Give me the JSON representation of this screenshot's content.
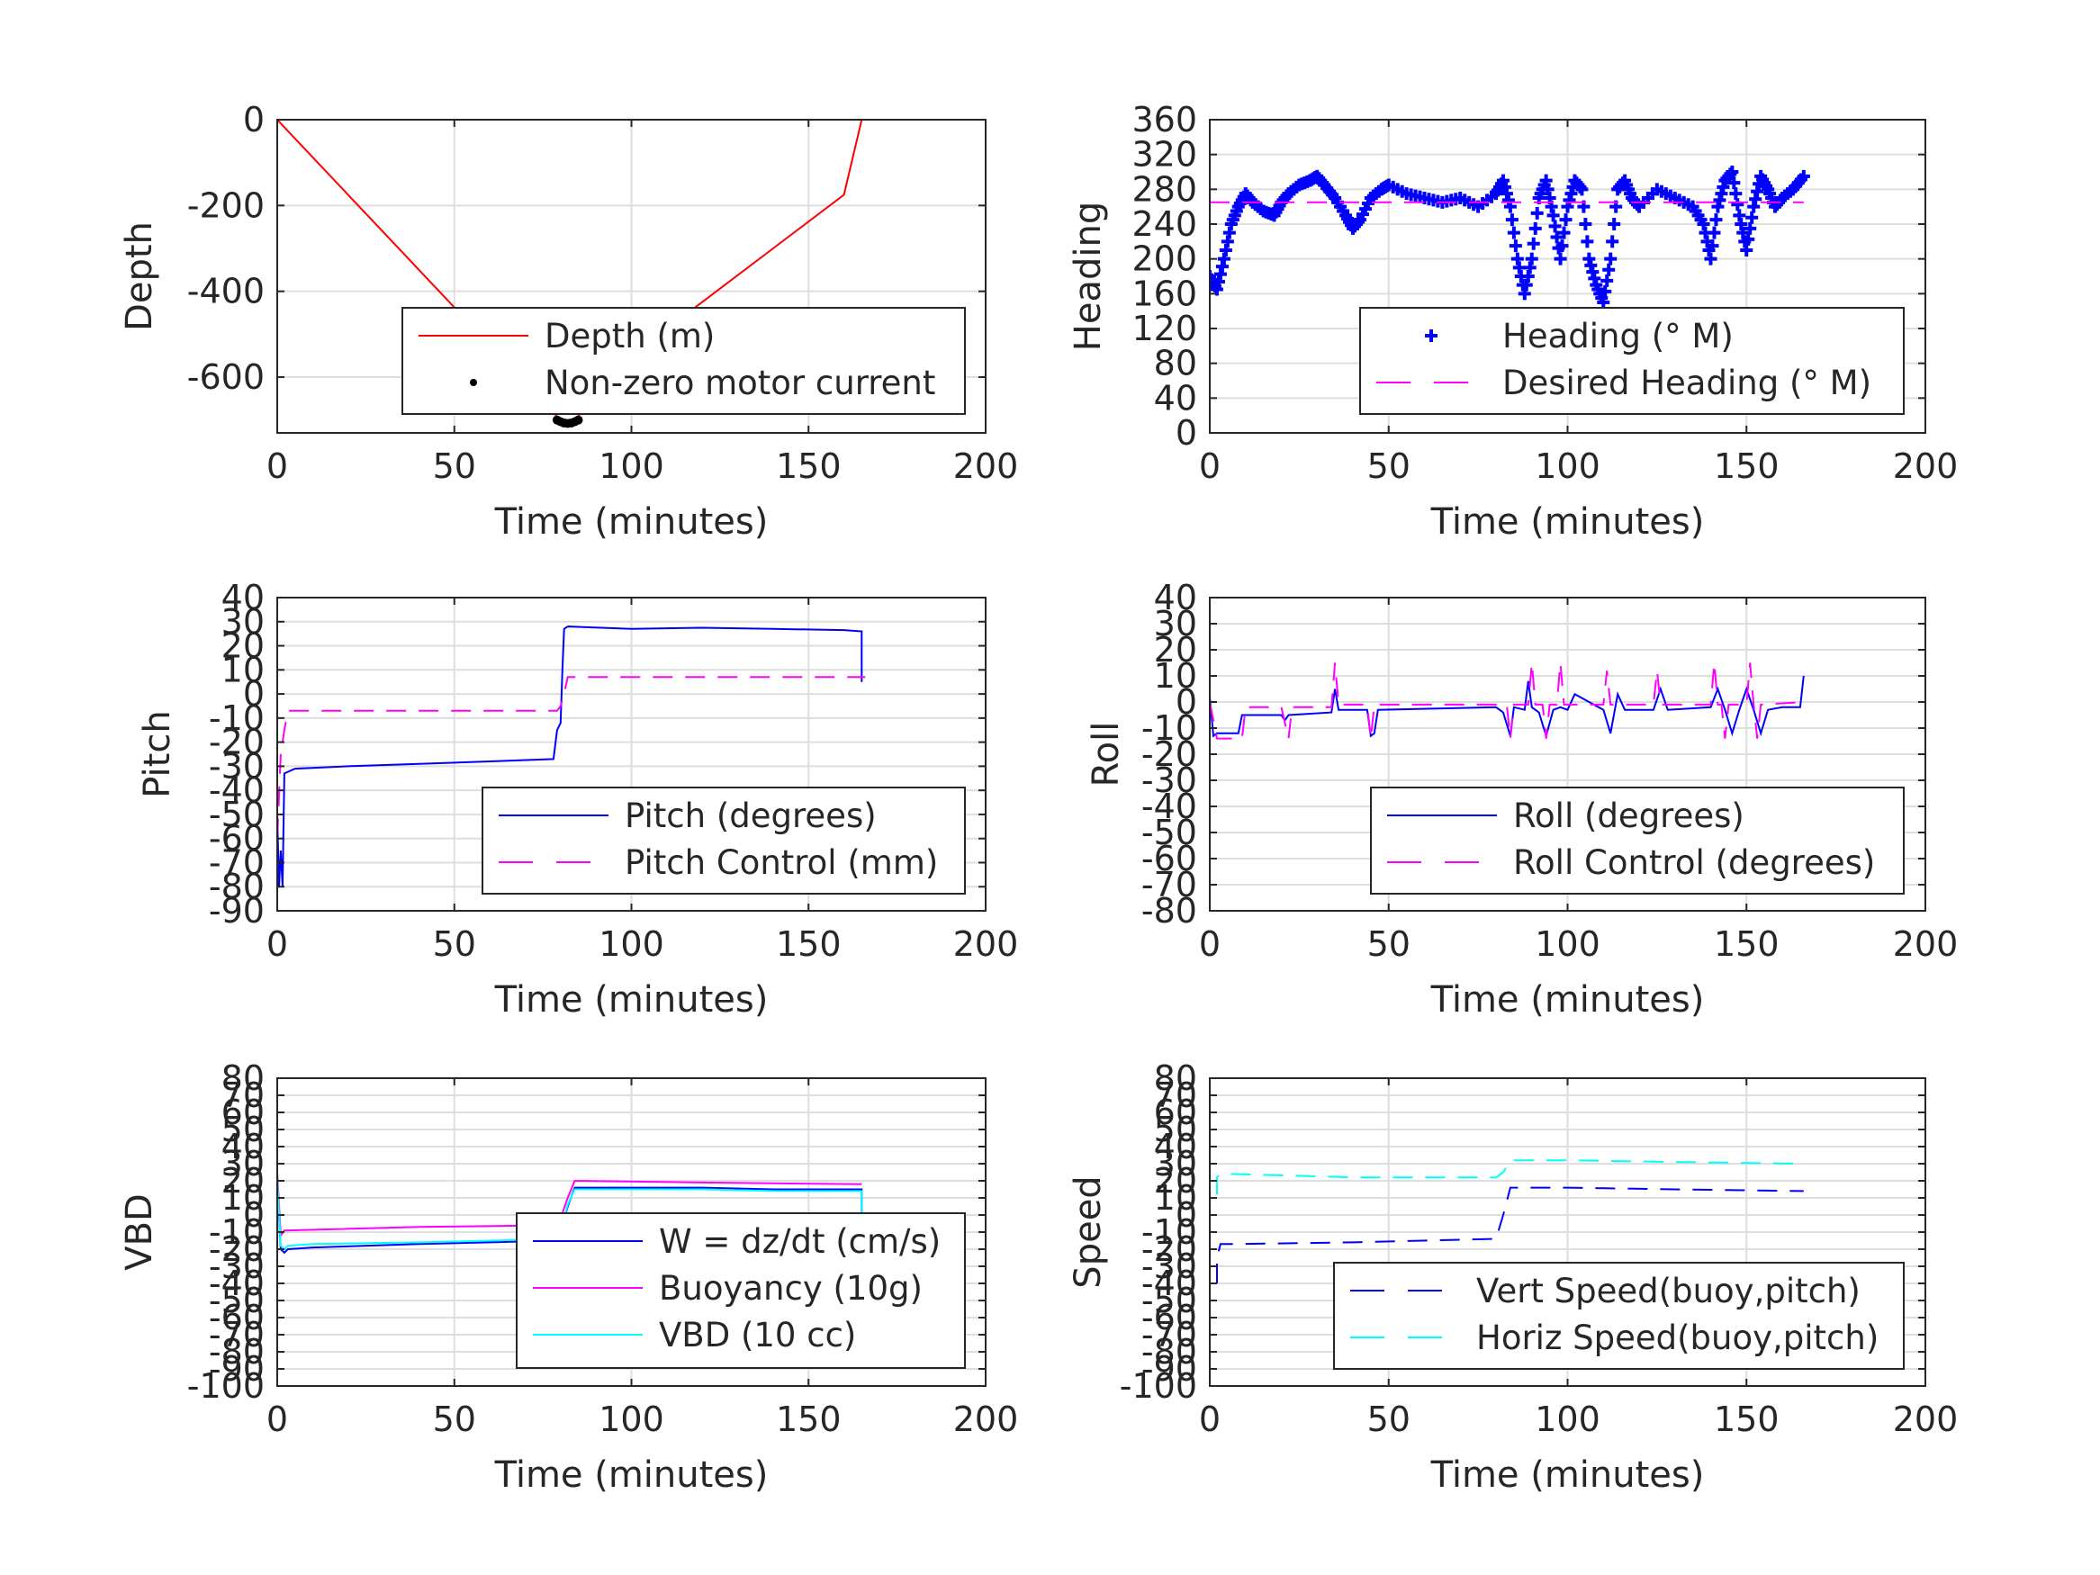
{
  "chart_data": [
    {
      "id": "depth",
      "type": "line",
      "xlabel": "Time (minutes)",
      "ylabel": "Depth",
      "xlim": [
        0,
        200
      ],
      "ylim": [
        -730,
        0
      ],
      "xticks": [
        0,
        50,
        100,
        150,
        200
      ],
      "yticks": [
        0,
        -200,
        -400,
        -600
      ],
      "grid": true,
      "legend": "bottom-right",
      "series": [
        {
          "name": "Depth (m)",
          "style": "solid",
          "color": "#ff0000",
          "x": [
            0,
            20,
            40,
            60,
            80,
            82,
            84,
            100,
            120,
            140,
            160,
            165
          ],
          "y": [
            0,
            -175,
            -350,
            -525,
            -700,
            -705,
            -700,
            -550,
            -425,
            -300,
            -175,
            0
          ]
        },
        {
          "name": "Non-zero motor current",
          "style": "dots",
          "color": "#000000",
          "x": [
            79,
            80,
            81,
            82,
            83,
            84,
            85
          ],
          "y": [
            -700,
            -704,
            -707,
            -708,
            -707,
            -704,
            -700
          ]
        }
      ]
    },
    {
      "id": "heading",
      "type": "scatter",
      "xlabel": "Time (minutes)",
      "ylabel": "Heading",
      "xlim": [
        0,
        200
      ],
      "ylim": [
        0,
        360
      ],
      "xticks": [
        0,
        50,
        100,
        150,
        200
      ],
      "yticks": [
        0,
        40,
        80,
        120,
        160,
        200,
        240,
        280,
        320,
        360
      ],
      "grid": true,
      "legend": "bottom-right",
      "series": [
        {
          "name": "Heading (° M)",
          "style": "plus",
          "color": "#0000ff",
          "x": [
            0,
            2,
            4,
            6,
            8,
            10,
            12,
            15,
            18,
            20,
            22,
            25,
            28,
            30,
            32,
            35,
            38,
            40,
            42,
            45,
            48,
            50,
            55,
            60,
            65,
            70,
            75,
            80,
            82,
            84,
            86,
            88,
            90,
            92,
            94,
            96,
            98,
            100,
            102,
            104,
            106,
            108,
            110,
            112,
            114,
            116,
            118,
            120,
            125,
            130,
            135,
            138,
            140,
            142,
            144,
            146,
            148,
            150,
            152,
            154,
            156,
            158,
            160,
            163,
            166
          ],
          "y": [
            180,
            165,
            200,
            240,
            260,
            275,
            265,
            255,
            250,
            265,
            275,
            285,
            290,
            295,
            285,
            270,
            250,
            235,
            245,
            270,
            280,
            285,
            275,
            270,
            265,
            270,
            260,
            275,
            290,
            260,
            200,
            160,
            200,
            270,
            290,
            250,
            200,
            260,
            290,
            280,
            200,
            170,
            150,
            200,
            280,
            290,
            270,
            260,
            280,
            270,
            260,
            240,
            200,
            260,
            290,
            300,
            250,
            210,
            260,
            295,
            280,
            260,
            270,
            280,
            295
          ]
        },
        {
          "name": "Desired Heading (° M)",
          "style": "dashed",
          "color": "#ff00ff",
          "x": [
            0,
            166
          ],
          "y": [
            265,
            265
          ]
        }
      ]
    },
    {
      "id": "pitch",
      "type": "line",
      "xlabel": "Time (minutes)",
      "ylabel": "Pitch",
      "xlim": [
        0,
        200
      ],
      "ylim": [
        -90,
        40
      ],
      "xticks": [
        0,
        50,
        100,
        150,
        200
      ],
      "yticks": [
        40,
        30,
        20,
        10,
        0,
        -10,
        -20,
        -30,
        -40,
        -50,
        -60,
        -70,
        -80,
        -90
      ],
      "grid": true,
      "legend": "bottom-right",
      "series": [
        {
          "name": "Pitch (degrees)",
          "style": "solid",
          "color": "#0000ff",
          "x": [
            0,
            0.5,
            1,
            1.5,
            2,
            5,
            20,
            40,
            60,
            78,
            79,
            80,
            80.5,
            81,
            82,
            100,
            120,
            140,
            160,
            165,
            165
          ],
          "y": [
            -50,
            -80,
            -65,
            -80,
            -33,
            -31,
            -30,
            -29,
            -28,
            -27,
            -15,
            -12,
            10,
            27,
            28,
            27,
            27.5,
            27,
            26.5,
            26,
            5
          ]
        },
        {
          "name": "Pitch Control (mm)",
          "style": "dashed",
          "color": "#ff00ff",
          "x": [
            0,
            1,
            2,
            3,
            79,
            80,
            81,
            82,
            166
          ],
          "y": [
            -60,
            -25,
            -15,
            -7,
            -7,
            -5,
            0,
            7,
            7
          ]
        }
      ]
    },
    {
      "id": "roll",
      "type": "line",
      "xlabel": "Time (minutes)",
      "ylabel": "Roll",
      "xlim": [
        0,
        200
      ],
      "ylim": [
        -80,
        40
      ],
      "xticks": [
        0,
        50,
        100,
        150,
        200
      ],
      "yticks": [
        40,
        30,
        20,
        10,
        0,
        -10,
        -20,
        -30,
        -40,
        -50,
        -60,
        -70,
        -80
      ],
      "grid": true,
      "legend": "bottom-right",
      "series": [
        {
          "name": "Roll (degrees)",
          "style": "solid",
          "color": "#0000ff",
          "x": [
            0,
            1,
            2,
            8,
            9,
            20,
            21,
            22,
            34,
            35,
            36,
            44,
            45,
            46,
            47,
            80,
            82,
            84,
            85,
            88,
            89,
            90,
            92,
            94,
            96,
            98,
            100,
            102,
            110,
            112,
            114,
            116,
            124,
            126,
            128,
            140,
            142,
            144,
            146,
            148,
            150,
            152,
            154,
            156,
            160,
            165,
            166
          ],
          "y": [
            2,
            -13,
            -12,
            -12,
            -5,
            -5,
            -7,
            -5,
            -4,
            5,
            -3,
            -3,
            -13,
            -12,
            -3,
            -2,
            -4,
            -13,
            -2,
            -3,
            8,
            -2,
            -4,
            -13,
            -3,
            -2,
            -3,
            3,
            -3,
            -12,
            3,
            -3,
            -3,
            5,
            -3,
            -2,
            5,
            -3,
            -12,
            -3,
            5,
            -3,
            -12,
            -3,
            -2,
            -2,
            10
          ]
        },
        {
          "name": "Roll Control (degrees)",
          "style": "dashed",
          "color": "#ff00ff",
          "x": [
            0,
            2,
            9,
            10,
            20,
            22,
            23,
            34,
            35,
            36,
            37,
            44,
            45,
            46,
            47,
            83,
            84,
            85,
            86,
            89,
            90,
            91,
            93,
            94,
            95,
            97,
            98,
            99,
            101,
            110,
            111,
            112,
            113,
            124,
            125,
            126,
            127,
            140,
            141,
            142,
            143,
            144,
            145,
            146,
            150,
            151,
            152,
            153,
            154,
            166
          ],
          "y": [
            0,
            -14,
            -14,
            -2,
            -2,
            -14,
            -2,
            -2,
            15,
            -1,
            -1,
            -1,
            -14,
            -1,
            -1,
            -1,
            -14,
            -1,
            -1,
            -1,
            15,
            -1,
            -1,
            -14,
            -1,
            -1,
            15,
            -1,
            -1,
            -1,
            12,
            -1,
            -1,
            -1,
            12,
            -1,
            -1,
            -1,
            15,
            -1,
            -1,
            -14,
            -1,
            -1,
            -1,
            15,
            -1,
            -14,
            -1,
            0
          ]
        }
      ]
    },
    {
      "id": "vbd",
      "type": "line",
      "xlabel": "Time (minutes)",
      "ylabel": "VBD",
      "xlim": [
        0,
        200
      ],
      "ylim": [
        -100,
        80
      ],
      "xticks": [
        0,
        50,
        100,
        150,
        200
      ],
      "yticks": [
        80,
        70,
        60,
        50,
        40,
        30,
        20,
        10,
        0,
        -10,
        -20,
        -30,
        -40,
        -50,
        -60,
        -70,
        -80,
        -90,
        -100
      ],
      "grid": true,
      "legend": "bottom-right",
      "series": [
        {
          "name": "W = dz/dt (cm/s)",
          "style": "solid",
          "color": "#0000ff",
          "x": [
            0,
            1,
            2,
            3,
            10,
            40,
            60,
            78,
            80,
            82,
            84,
            100,
            120,
            140,
            160,
            165,
            165
          ],
          "y": [
            20,
            -20,
            -22,
            -20,
            -19,
            -17,
            -16,
            -15,
            -10,
            5,
            16,
            16,
            16,
            15,
            15,
            15,
            0
          ]
        },
        {
          "name": "Buoyancy (10g)",
          "style": "solid",
          "color": "#ff00ff",
          "x": [
            0,
            1,
            2,
            3,
            40,
            79,
            80,
            82,
            84,
            120,
            165
          ],
          "y": [
            25,
            -12,
            -9,
            -9,
            -7,
            -6,
            -2,
            10,
            20,
            19,
            18
          ]
        },
        {
          "name": "VBD (10 cc)",
          "style": "solid",
          "color": "#00ffff",
          "x": [
            0,
            1,
            2,
            3,
            10,
            40,
            60,
            78,
            80,
            82,
            84,
            100,
            120,
            140,
            160,
            165,
            165
          ],
          "y": [
            22,
            -18,
            -20,
            -18,
            -17,
            -16,
            -15,
            -14,
            -9,
            6,
            15,
            15,
            15,
            14,
            14,
            14,
            0
          ]
        }
      ]
    },
    {
      "id": "speed",
      "type": "line",
      "xlabel": "Time (minutes)",
      "ylabel": "Speed",
      "xlim": [
        0,
        200
      ],
      "ylim": [
        -100,
        80
      ],
      "xticks": [
        0,
        50,
        100,
        150,
        200
      ],
      "yticks": [
        80,
        70,
        60,
        50,
        40,
        30,
        20,
        10,
        0,
        -10,
        -20,
        -30,
        -40,
        -50,
        -60,
        -70,
        -80,
        -90,
        -100
      ],
      "grid": true,
      "legend": "bottom-right",
      "series": [
        {
          "name": "Vert Speed(buoy,pitch)",
          "style": "dashed",
          "color": "#0000ff",
          "x": [
            2,
            2,
            3,
            6,
            40,
            79,
            80,
            82,
            84,
            100,
            130,
            166
          ],
          "y": [
            -40,
            -25,
            -17,
            -17,
            -16,
            -14,
            -14,
            0,
            16,
            16,
            15,
            14
          ]
        },
        {
          "name": "Horiz Speed(buoy,pitch)",
          "style": "dashed",
          "color": "#00ffff",
          "x": [
            2,
            2,
            3,
            6,
            40,
            79,
            80,
            82,
            84,
            100,
            130,
            166
          ],
          "y": [
            12,
            22,
            24,
            24,
            22,
            22,
            22,
            25,
            32,
            32,
            31,
            30
          ]
        }
      ]
    }
  ]
}
